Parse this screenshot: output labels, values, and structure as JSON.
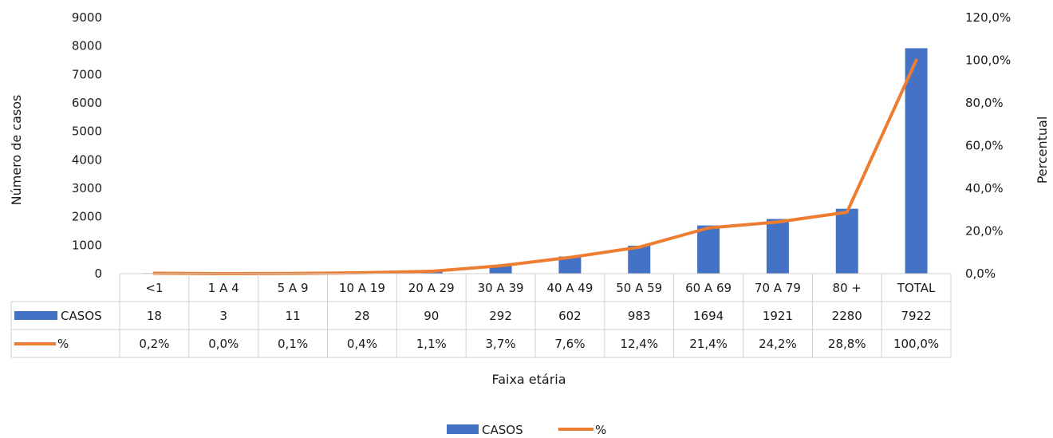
{
  "chart_data": {
    "type": "bar",
    "categories": [
      "<1",
      "1 A 4",
      "5 A 9",
      "10 A 19",
      "20 A 29",
      "30 A 39",
      "40 A 49",
      "50 A 59",
      "60 A 69",
      "70 A 79",
      "80 +",
      "TOTAL"
    ],
    "series": [
      {
        "name": "CASOS",
        "type": "bar",
        "axis": "left",
        "color": "#4472C4",
        "values": [
          18,
          3,
          11,
          28,
          90,
          292,
          602,
          983,
          1694,
          1921,
          2280,
          7922
        ],
        "labels": [
          "18",
          "3",
          "11",
          "28",
          "90",
          "292",
          "602",
          "983",
          "1694",
          "1921",
          "2280",
          "7922"
        ]
      },
      {
        "name": "%",
        "type": "line",
        "axis": "right",
        "color": "#ED7D31",
        "values": [
          0.2,
          0.0,
          0.1,
          0.4,
          1.1,
          3.7,
          7.6,
          12.4,
          21.4,
          24.2,
          28.8,
          100.0
        ],
        "labels": [
          "0,2%",
          "0,0%",
          "0,1%",
          "0,4%",
          "1,1%",
          "3,7%",
          "7,6%",
          "12,4%",
          "21,4%",
          "24,2%",
          "28,8%",
          "100,0%"
        ]
      }
    ],
    "xlabel": "Faixa etária",
    "ylabel": "Número de casos",
    "y2label": "Percentual",
    "ylim": [
      0,
      9000
    ],
    "y2lim": [
      0,
      120
    ],
    "yticks": [
      "0",
      "1000",
      "2000",
      "3000",
      "4000",
      "5000",
      "6000",
      "7000",
      "8000",
      "9000"
    ],
    "y2ticks": [
      "0,0%",
      "20,0%",
      "40,0%",
      "60,0%",
      "80,0%",
      "100,0%",
      "120,0%"
    ],
    "legend": {
      "position": "bottom",
      "items": [
        "CASOS",
        "%"
      ]
    },
    "data_table": true
  }
}
